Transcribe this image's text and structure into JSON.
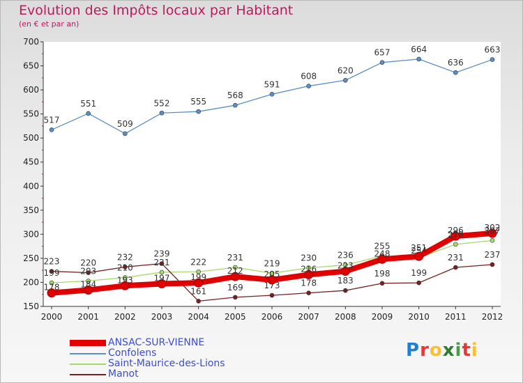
{
  "header": {
    "title": "Evolution des Impôts locaux par Habitant",
    "subtitle": "(en € et par an)"
  },
  "logo": {
    "letters": [
      "P",
      "r",
      "o",
      "x",
      "i",
      "t",
      "i"
    ],
    "colors": [
      "#1e7fd8",
      "#e53935",
      "#fbc02d",
      "#2e7d32",
      "#43a047",
      "#e53935",
      "#fbc02d"
    ]
  },
  "chart_data": {
    "type": "line",
    "x": [
      "2000",
      "2001",
      "2002",
      "2003",
      "2004",
      "2005",
      "2006",
      "2007",
      "2008",
      "2009",
      "2010",
      "2011",
      "2012"
    ],
    "ylim": [
      150,
      700
    ],
    "yticks": [
      "150",
      "200",
      "250",
      "300",
      "350",
      "400",
      "450",
      "500",
      "550",
      "600",
      "650",
      "700"
    ],
    "grid": false,
    "legend_position": "bottom-left",
    "series": [
      {
        "name": "ANSAC-SUR-VIENNE",
        "color": "#e00000",
        "values": [
          178,
          184,
          193,
          197,
          199,
          212,
          205,
          216,
          223,
          248,
          254,
          296,
          302
        ],
        "labels": [
          "178",
          "184",
          "193",
          "197",
          "199",
          "212",
          "205",
          "216",
          "223",
          "248",
          "254",
          "296",
          "302"
        ]
      },
      {
        "name": "Confolens",
        "color": "#5b8fc7",
        "values": [
          517,
          551,
          509,
          552,
          555,
          568,
          591,
          608,
          620,
          657,
          664,
          636,
          663
        ],
        "labels": [
          "517",
          "551",
          "509",
          "552",
          "555",
          "568",
          "591",
          "608",
          "620",
          "657",
          "664",
          "636",
          "663"
        ]
      },
      {
        "name": "Saint-Maurice-des-Lions",
        "color": "#a6d96a",
        "values": [
          199,
          203,
          210,
          221,
          222,
          231,
          219,
          230,
          236,
          255,
          251,
          279,
          287
        ],
        "labels": [
          "199",
          "203",
          "210",
          "221",
          "222",
          "231",
          "219",
          "230",
          "236",
          "255",
          "251",
          "279",
          "287"
        ]
      },
      {
        "name": "Manot",
        "color": "#7a1f1f",
        "values": [
          223,
          220,
          232,
          239,
          161,
          169,
          173,
          178,
          183,
          198,
          199,
          231,
          237
        ],
        "labels": [
          "223",
          "220",
          "232",
          "239",
          "161",
          "169",
          "173",
          "178",
          "183",
          "198",
          "199",
          "231",
          "237"
        ]
      }
    ]
  }
}
